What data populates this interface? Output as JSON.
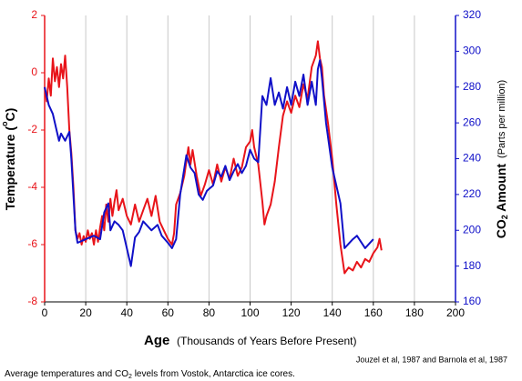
{
  "chart_data": {
    "type": "line",
    "xlabel": "Age",
    "xlabel_note": "(Thousands of Years Before Present)",
    "ylabel_parts": [
      "Temperature (",
      "o",
      "C)"
    ],
    "y2label_parts": [
      "CO",
      "2",
      " Amount"
    ],
    "y2label_note": "(Parts per million)",
    "source": "Jouzel et al, 1987 and Barnola et al, 1987",
    "caption_parts": [
      "Average temperatures and CO",
      "2",
      " levels from Vostok, Antarctica ice cores."
    ],
    "xlim": [
      0,
      200
    ],
    "xticks": [
      0,
      20,
      40,
      60,
      80,
      100,
      120,
      140,
      160,
      180,
      200
    ],
    "ylim": [
      -8,
      2
    ],
    "yticks": [
      -8,
      -6,
      -4,
      -2,
      0,
      2
    ],
    "y2lim": [
      160,
      320
    ],
    "y2ticks": [
      160,
      180,
      200,
      220,
      240,
      260,
      280,
      300,
      320
    ],
    "grid": "x",
    "ycolor": "#e8141a",
    "y2color": "#1010c8",
    "series": [
      {
        "color": "#e8141a",
        "x": [
          0,
          1,
          2,
          3,
          4,
          5,
          6,
          7,
          8,
          9,
          10,
          11,
          12,
          13,
          14,
          15,
          16,
          17,
          18,
          19,
          20,
          21,
          22,
          23,
          24,
          25,
          26,
          27,
          28,
          29,
          30,
          31,
          32,
          33,
          34,
          35,
          36,
          38,
          40,
          42,
          44,
          46,
          48,
          50,
          52,
          54,
          56,
          58,
          60,
          62,
          63,
          64,
          66,
          68,
          70,
          71,
          72,
          74,
          76,
          78,
          80,
          82,
          84,
          86,
          88,
          90,
          92,
          94,
          96,
          98,
          100,
          101,
          102,
          104,
          106,
          107,
          108,
          110,
          112,
          114,
          116,
          118,
          120,
          122,
          124,
          126,
          128,
          130,
          132,
          133,
          134,
          135,
          136,
          138,
          140,
          142,
          144,
          146,
          148,
          150,
          152,
          154,
          156,
          158,
          160,
          162,
          163,
          164
        ],
        "values": [
          -0.5,
          -1,
          -0.2,
          -0.8,
          0.5,
          -0.3,
          0.2,
          -0.5,
          0.3,
          -0.2,
          0.6,
          -0.5,
          -2,
          -2.8,
          -4,
          -5.5,
          -5.8,
          -5.6,
          -6.0,
          -5.7,
          -5.9,
          -5.5,
          -5.8,
          -5.6,
          -6.0,
          -5.5,
          -5.9,
          -5.4,
          -5.0,
          -5.5,
          -4.6,
          -5.2,
          -4.4,
          -5.0,
          -4.5,
          -4.1,
          -4.8,
          -4.4,
          -5.0,
          -5.3,
          -4.6,
          -5.2,
          -4.8,
          -4.4,
          -5.0,
          -4.3,
          -5.2,
          -5.5,
          -5.8,
          -6.0,
          -5.6,
          -4.6,
          -4.2,
          -3.6,
          -2.6,
          -3.2,
          -2.7,
          -3.6,
          -4.3,
          -3.9,
          -3.4,
          -3.9,
          -3.2,
          -3.8,
          -3.3,
          -3.7,
          -3.0,
          -3.6,
          -3.3,
          -2.6,
          -2.4,
          -2.0,
          -2.6,
          -3.2,
          -4.5,
          -5.3,
          -5.0,
          -4.6,
          -3.8,
          -2.6,
          -1.5,
          -1.0,
          -1.4,
          -0.8,
          -1.2,
          -0.4,
          -0.9,
          0.2,
          0.6,
          1.1,
          0.5,
          0.2,
          -0.8,
          -1.8,
          -3.0,
          -4.6,
          -6.0,
          -7.0,
          -6.8,
          -6.9,
          -6.6,
          -6.8,
          -6.5,
          -6.6,
          -6.3,
          -6.1,
          -5.8,
          -6.2
        ]
      },
      {
        "color": "#1010c8",
        "axis": "y2",
        "x": [
          0,
          2,
          4,
          6,
          7,
          8,
          10,
          12,
          13,
          15,
          16,
          20,
          24,
          27,
          29,
          31,
          32,
          34,
          36,
          38,
          40,
          42,
          44,
          46,
          48,
          52,
          55,
          57,
          60,
          62,
          64,
          66,
          69,
          71,
          73,
          75,
          77,
          79,
          82,
          84,
          86,
          88,
          90,
          92,
          94,
          96,
          98,
          100,
          102,
          104,
          106,
          108,
          110,
          112,
          114,
          116,
          118,
          120,
          122,
          124,
          126,
          128,
          130,
          132,
          133,
          134,
          135,
          137,
          140,
          142,
          144,
          146,
          150,
          152,
          156,
          160
        ],
        "values": [
          280,
          270,
          265,
          255,
          250,
          254,
          250,
          255,
          240,
          200,
          193,
          195,
          197,
          195,
          210,
          215,
          200,
          205,
          203,
          200,
          190,
          180,
          196,
          199,
          205,
          200,
          203,
          197,
          193,
          190,
          195,
          220,
          242,
          235,
          232,
          220,
          217,
          222,
          225,
          233,
          230,
          236,
          228,
          233,
          237,
          232,
          236,
          245,
          240,
          238,
          275,
          270,
          285,
          270,
          277,
          268,
          280,
          270,
          283,
          275,
          287,
          270,
          283,
          270,
          290,
          295,
          285,
          260,
          235,
          225,
          215,
          190,
          195,
          197,
          190,
          195
        ]
      }
    ]
  }
}
